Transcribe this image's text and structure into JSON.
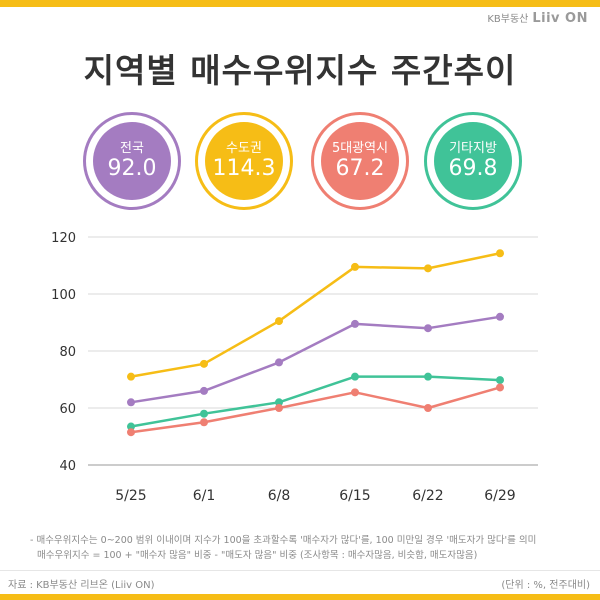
{
  "header": {
    "logo_small": "KB부동산",
    "logo_brand": "Liiv ON",
    "title": "지역별 매수우위지수 주간추이"
  },
  "badges": [
    {
      "label": "전국",
      "value": "92.0",
      "color": "#a47cc1"
    },
    {
      "label": "수도권",
      "value": "114.3",
      "color": "#f6bd16"
    },
    {
      "label": "5대광역시",
      "value": "67.2",
      "color": "#ef7f72"
    },
    {
      "label": "기타지방",
      "value": "69.8",
      "color": "#40c398"
    }
  ],
  "chart_data": {
    "type": "line",
    "title": "지역별 매수우위지수 주간추이",
    "x": [
      "5/25",
      "6/1",
      "6/8",
      "6/15",
      "6/22",
      "6/29"
    ],
    "ylim": [
      40,
      120
    ],
    "yticks": [
      40,
      60,
      80,
      100,
      120
    ],
    "grid": true,
    "series": [
      {
        "name": "수도권",
        "color": "#f6bd16",
        "values": [
          71.0,
          75.5,
          90.5,
          109.5,
          109.0,
          114.3
        ]
      },
      {
        "name": "전국",
        "color": "#a47cc1",
        "values": [
          62.0,
          66.0,
          76.0,
          89.5,
          88.0,
          92.0
        ]
      },
      {
        "name": "기타지방",
        "color": "#40c398",
        "values": [
          53.5,
          58.0,
          62.0,
          71.0,
          71.0,
          69.8
        ]
      },
      {
        "name": "5대광역시",
        "color": "#ef7f72",
        "values": [
          51.5,
          55.0,
          60.0,
          65.5,
          60.0,
          67.2
        ]
      }
    ]
  },
  "notes": {
    "line1": "- 매수우위지수는 0~200 범위 이내이며 지수가 100을 초과할수록 '매수자가 많다'를, 100 미만일 경우 '매도자가 많다'를 의미",
    "line2": "매수우위지수 = 100 + \"매수자 많음\" 비중 - \"매도자 많음\" 비중 (조사항목 : 매수자많음, 비슷함, 매도자많음)"
  },
  "footer": {
    "source": "자료 : KB부동산 리브온 (Liiv ON)",
    "unit": "(단위 : %, 전주대비)"
  }
}
